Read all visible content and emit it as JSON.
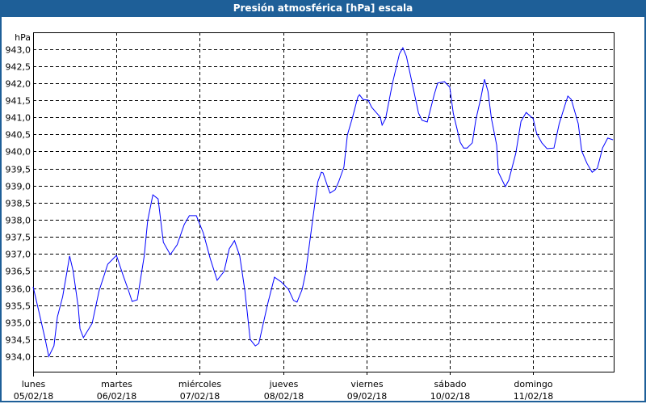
{
  "chart_data": {
    "type": "line",
    "title": "Presión atmosférica [hPa] escala",
    "ylabel": "hPa",
    "xlabel": "",
    "ylim": [
      933.55,
      943.48
    ],
    "yticks": [
      "934,0",
      "934,5",
      "935,0",
      "935,5",
      "936,0",
      "936,5",
      "937,0",
      "937,5",
      "938,0",
      "938,5",
      "939,0",
      "939,5",
      "940,0",
      "940,5",
      "941,0",
      "941,5",
      "942,0",
      "942,5",
      "943,0"
    ],
    "ytick_values": [
      934.0,
      934.5,
      935.0,
      935.5,
      936.0,
      936.5,
      937.0,
      937.5,
      938.0,
      938.5,
      939.0,
      939.5,
      940.0,
      940.5,
      941.0,
      941.5,
      942.0,
      942.5,
      943.0
    ],
    "days": [
      {
        "name": "lunes",
        "date": "05/02/18"
      },
      {
        "name": "martes",
        "date": "06/02/18"
      },
      {
        "name": "miércoles",
        "date": "07/02/18"
      },
      {
        "name": "jueves",
        "date": "08/02/18"
      },
      {
        "name": "viernes",
        "date": "09/02/18"
      },
      {
        "name": "sábado",
        "date": "10/02/18"
      },
      {
        "name": "domingo",
        "date": "11/02/18"
      }
    ],
    "grid": true,
    "line_color": "#0000ff",
    "series": [
      {
        "points": [
          [
            "05/02/18 00:00",
            936.04
          ],
          [
            "05/02/18 01:30",
            935.38
          ],
          [
            "05/02/18 03:30",
            934.5
          ],
          [
            "05/02/18 04:30",
            934.0
          ],
          [
            "05/02/18 06:00",
            934.31
          ],
          [
            "05/02/18 07:00",
            935.16
          ],
          [
            "05/02/18 08:30",
            935.75
          ],
          [
            "05/02/18 10:00",
            936.63
          ],
          [
            "05/02/18 10:30",
            936.94
          ],
          [
            "05/02/18 11:30",
            936.51
          ],
          [
            "05/02/18 13:00",
            935.45
          ],
          [
            "05/02/18 13:30",
            934.81
          ],
          [
            "05/02/18 14:30",
            934.55
          ],
          [
            "05/02/18 17:00",
            934.97
          ],
          [
            "05/02/18 19:00",
            935.92
          ],
          [
            "05/02/18 21:30",
            936.7
          ],
          [
            "06/02/18 00:00",
            936.96
          ],
          [
            "06/02/18 02:00",
            936.35
          ],
          [
            "06/02/18 03:30",
            935.92
          ],
          [
            "06/02/18 04:30",
            935.61
          ],
          [
            "06/02/18 06:00",
            935.66
          ],
          [
            "06/02/18 08:00",
            936.94
          ],
          [
            "06/02/18 09:00",
            937.98
          ],
          [
            "06/02/18 10:30",
            938.73
          ],
          [
            "06/02/18 12:00",
            938.61
          ],
          [
            "06/02/18 13:30",
            937.34
          ],
          [
            "06/02/18 15:30",
            936.98
          ],
          [
            "06/02/18 17:30",
            937.27
          ],
          [
            "06/02/18 19:30",
            937.86
          ],
          [
            "06/02/18 21:00",
            938.12
          ],
          [
            "06/02/18 23:00",
            938.12
          ],
          [
            "07/02/18 01:00",
            937.62
          ],
          [
            "07/02/18 03:00",
            936.87
          ],
          [
            "07/02/18 05:00",
            936.23
          ],
          [
            "07/02/18 07:00",
            936.49
          ],
          [
            "07/02/18 08:30",
            937.15
          ],
          [
            "07/02/18 10:00",
            937.39
          ],
          [
            "07/02/18 11:30",
            936.94
          ],
          [
            "07/02/18 13:00",
            935.92
          ],
          [
            "07/02/18 14:30",
            934.5
          ],
          [
            "07/02/18 16:00",
            934.31
          ],
          [
            "07/02/18 17:00",
            934.38
          ],
          [
            "07/02/18 19:30",
            935.52
          ],
          [
            "07/02/18 21:30",
            936.32
          ],
          [
            "07/02/18 23:30",
            936.18
          ],
          [
            "08/02/18 01:30",
            935.97
          ],
          [
            "08/02/18 03:00",
            935.64
          ],
          [
            "08/02/18 04:00",
            935.59
          ],
          [
            "08/02/18 05:30",
            935.97
          ],
          [
            "08/02/18 06:30",
            936.46
          ],
          [
            "08/02/18 08:30",
            937.98
          ],
          [
            "08/02/18 10:00",
            939.11
          ],
          [
            "08/02/18 11:00",
            939.39
          ],
          [
            "08/02/18 11:30",
            939.37
          ],
          [
            "08/02/18 13:00",
            938.92
          ],
          [
            "08/02/18 13:30",
            938.78
          ],
          [
            "08/02/18 15:00",
            938.88
          ],
          [
            "08/02/18 16:00",
            939.11
          ],
          [
            "08/02/18 17:30",
            939.54
          ],
          [
            "08/02/18 18:30",
            940.48
          ],
          [
            "08/02/18 20:00",
            941.0
          ],
          [
            "08/02/18 21:30",
            941.59
          ],
          [
            "08/02/18 22:00",
            941.66
          ],
          [
            "08/02/18 23:00",
            941.52
          ],
          [
            "09/02/18 00:30",
            941.5
          ],
          [
            "09/02/18 01:30",
            941.29
          ],
          [
            "09/02/18 04:00",
            941.0
          ],
          [
            "09/02/18 04:30",
            940.77
          ],
          [
            "09/02/18 05:30",
            940.96
          ],
          [
            "09/02/18 07:30",
            942.0
          ],
          [
            "09/02/18 09:30",
            942.85
          ],
          [
            "09/02/18 10:30",
            943.03
          ],
          [
            "09/02/18 11:30",
            942.78
          ],
          [
            "09/02/18 13:30",
            941.83
          ],
          [
            "09/02/18 15:00",
            941.12
          ],
          [
            "09/02/18 16:00",
            940.91
          ],
          [
            "09/02/18 17:30",
            940.86
          ],
          [
            "09/02/18 19:30",
            941.66
          ],
          [
            "09/02/18 20:30",
            942.0
          ],
          [
            "09/02/18 22:30",
            942.04
          ],
          [
            "10/02/18 00:00",
            941.88
          ],
          [
            "10/02/18 01:00",
            941.12
          ],
          [
            "10/02/18 03:00",
            940.27
          ],
          [
            "10/02/18 04:00",
            940.1
          ],
          [
            "10/02/18 05:00",
            940.1
          ],
          [
            "10/02/18 06:30",
            940.25
          ],
          [
            "10/02/18 07:30",
            940.93
          ],
          [
            "10/02/18 09:00",
            941.59
          ],
          [
            "10/02/18 10:00",
            942.11
          ],
          [
            "10/02/18 11:00",
            941.76
          ],
          [
            "10/02/18 12:00",
            940.96
          ],
          [
            "10/02/18 13:30",
            940.18
          ],
          [
            "10/02/18 14:00",
            939.39
          ],
          [
            "10/02/18 16:00",
            938.97
          ],
          [
            "10/02/18 17:00",
            939.16
          ],
          [
            "10/02/18 19:00",
            939.94
          ],
          [
            "10/02/18 20:30",
            940.88
          ],
          [
            "10/02/18 22:00",
            941.14
          ],
          [
            "11/02/18 00:00",
            940.96
          ],
          [
            "11/02/18 01:00",
            940.53
          ],
          [
            "11/02/18 02:30",
            940.25
          ],
          [
            "11/02/18 04:00",
            940.08
          ],
          [
            "11/02/18 06:00",
            940.1
          ],
          [
            "11/02/18 07:30",
            940.81
          ],
          [
            "11/02/18 10:00",
            941.62
          ],
          [
            "11/02/18 11:00",
            941.52
          ],
          [
            "11/02/18 13:00",
            940.81
          ],
          [
            "11/02/18 14:00",
            940.01
          ],
          [
            "11/02/18 15:30",
            939.65
          ],
          [
            "11/02/18 17:00",
            939.39
          ],
          [
            "11/02/18 18:30",
            939.51
          ],
          [
            "11/02/18 20:00",
            940.1
          ],
          [
            "11/02/18 21:30",
            940.39
          ],
          [
            "11/02/18 23:00",
            940.34
          ]
        ]
      }
    ]
  }
}
